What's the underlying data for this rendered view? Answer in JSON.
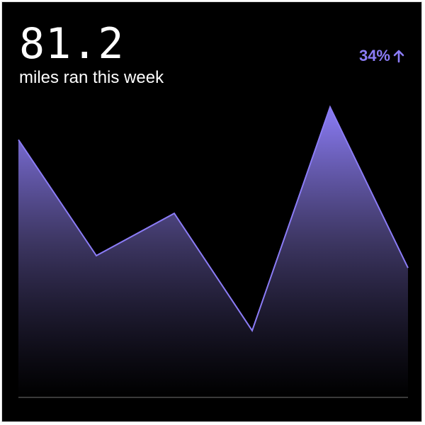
{
  "summary": {
    "value": "81.2",
    "caption": "miles ran this week",
    "change": "34%",
    "change_direction": "up-arrow-icon"
  },
  "colors": {
    "background": "#000000",
    "accent": "#8b7cf6",
    "text": "#ffffff",
    "baseline": "#3a3a3a"
  },
  "chart_data": {
    "type": "area",
    "x": [
      1,
      2,
      3,
      4,
      5,
      6
    ],
    "values": [
      18.9,
      10.4,
      13.5,
      4.9,
      21.3,
      9.5
    ],
    "ylim": [
      0,
      29
    ],
    "grid": false,
    "title": "",
    "xlabel": "",
    "ylabel": ""
  }
}
